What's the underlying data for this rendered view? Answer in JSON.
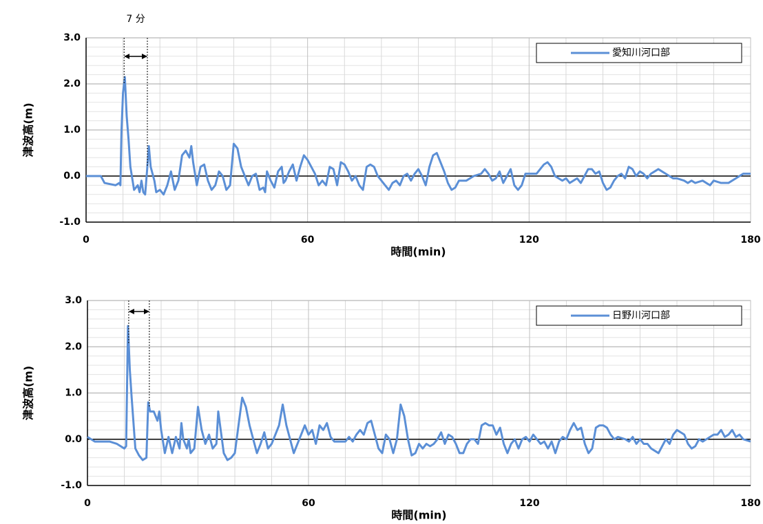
{
  "chart_data": [
    {
      "type": "line",
      "annotation": {
        "text": "7 分",
        "x": [
          10.3,
          16.6
        ]
      },
      "xlabel": "時間(min)",
      "ylabel": "津波高(m)",
      "xlim": [
        0,
        180
      ],
      "ylim": [
        -1,
        3
      ],
      "xticks": [
        0,
        60,
        120,
        180
      ],
      "yticks": [
        {
          "value": -1,
          "label": "-1.0"
        },
        {
          "value": 0,
          "label": "0.0"
        },
        {
          "value": 1,
          "label": "1.0"
        },
        {
          "value": 2,
          "label": "2.0"
        },
        {
          "value": 3,
          "label": "3.0"
        }
      ],
      "xminor": [
        10,
        20,
        30,
        40,
        50,
        70,
        80,
        90,
        100,
        110,
        130,
        140,
        150,
        160,
        170
      ],
      "yminor": [
        -0.8,
        -0.6,
        -0.4,
        -0.2,
        0.2,
        0.4,
        0.6,
        0.8,
        1.2,
        1.4,
        1.6,
        1.8,
        2.2,
        2.4,
        2.6,
        2.8
      ],
      "grid": true,
      "legend": "upper right",
      "x": [
        0,
        4,
        5,
        8,
        9,
        9.3,
        9.6,
        10,
        10.5,
        11,
        11.5,
        12,
        13,
        14,
        14.5,
        15,
        15.5,
        16,
        16.5,
        17,
        17.5,
        18.5,
        19,
        20,
        21,
        22,
        23,
        23.5,
        24,
        25,
        26,
        27,
        28,
        28.5,
        29,
        30,
        31,
        32,
        33,
        34,
        35,
        36,
        37,
        38,
        39,
        40,
        41,
        42,
        43,
        44,
        45,
        46,
        47,
        48,
        48.5,
        49,
        50,
        51,
        52,
        53,
        53.5,
        54,
        55,
        56,
        57,
        58,
        59,
        60,
        61,
        62,
        63,
        64,
        65,
        66,
        67,
        68,
        69,
        70,
        71,
        72,
        73,
        74,
        75,
        76,
        77,
        78,
        79,
        80,
        81,
        82,
        83,
        84,
        85,
        86,
        87,
        88,
        89,
        90,
        91,
        92,
        93,
        94,
        95,
        96,
        97,
        98,
        99,
        100,
        101,
        103,
        105,
        107,
        108,
        109,
        110,
        111,
        112,
        113,
        114,
        115,
        116,
        117,
        118,
        119,
        120,
        121,
        122,
        123,
        124,
        125,
        126,
        127,
        128,
        129,
        130,
        131,
        132,
        133,
        134,
        135,
        136,
        137,
        138,
        139,
        140,
        141,
        142,
        143,
        144,
        145,
        146,
        147,
        148,
        149,
        150,
        151,
        152,
        153,
        154,
        155,
        156,
        157,
        158,
        159,
        160,
        162,
        163,
        164,
        165,
        167,
        168,
        169,
        170,
        172,
        174,
        175,
        176,
        177,
        178,
        180
      ],
      "series": [
        {
          "name": "愛知川河口部",
          "color": "#5b8fd6",
          "values": [
            0,
            0,
            -0.15,
            -0.2,
            -0.15,
            -0.2,
            1.0,
            1.8,
            2.15,
            1.3,
            0.8,
            0.2,
            -0.3,
            -0.2,
            -0.35,
            -0.1,
            -0.35,
            -0.4,
            0.1,
            0.65,
            0.2,
            -0.1,
            -0.35,
            -0.3,
            -0.4,
            -0.2,
            0.1,
            -0.1,
            -0.3,
            -0.1,
            0.45,
            0.55,
            0.4,
            0.65,
            0.3,
            -0.2,
            0.2,
            0.25,
            -0.1,
            -0.3,
            -0.2,
            0.1,
            0,
            -0.3,
            -0.2,
            0.7,
            0.6,
            0.2,
            0,
            -0.2,
            0,
            0.05,
            -0.3,
            -0.25,
            -0.35,
            0.1,
            -0.1,
            -0.25,
            0.1,
            0.2,
            -0.15,
            -0.1,
            0.1,
            0.25,
            -0.1,
            0.2,
            0.45,
            0.35,
            0.2,
            0.05,
            -0.2,
            -0.1,
            -0.2,
            0.2,
            0.15,
            -0.2,
            0.3,
            0.25,
            0.1,
            -0.1,
            0,
            -0.2,
            -0.3,
            0.2,
            0.25,
            0.2,
            0,
            -0.1,
            -0.2,
            -0.3,
            -0.15,
            -0.1,
            -0.2,
            0,
            0.05,
            -0.1,
            0.05,
            0.15,
            0,
            -0.2,
            0.2,
            0.45,
            0.5,
            0.3,
            0.1,
            -0.15,
            -0.3,
            -0.25,
            -0.1,
            -0.1,
            0,
            0.05,
            0.15,
            0.05,
            -0.1,
            -0.05,
            0.1,
            -0.15,
            0,
            0.15,
            -0.2,
            -0.3,
            -0.2,
            0.05,
            0.05,
            0.05,
            0.05,
            0.15,
            0.25,
            0.3,
            0.2,
            0,
            -0.05,
            -0.1,
            -0.05,
            -0.15,
            -0.1,
            -0.05,
            -0.15,
            0,
            0.15,
            0.15,
            0.05,
            0.1,
            -0.15,
            -0.3,
            -0.25,
            -0.1,
            0,
            0.05,
            -0.05,
            0.2,
            0.15,
            0,
            0.1,
            0.05,
            -0.05,
            0.05,
            0.1,
            0.15,
            0.1,
            0.05,
            0,
            -0.05,
            -0.05,
            -0.1,
            -0.15,
            -0.1,
            -0.15,
            -0.1,
            -0.15,
            -0.2,
            -0.1,
            -0.15,
            -0.15,
            -0.1,
            -0.05,
            0,
            0.05,
            0.05
          ]
        }
      ]
    },
    {
      "type": "line",
      "annotation": {
        "x": [
          11.2,
          16.8
        ]
      },
      "xlabel": "時間(min)",
      "ylabel": "津波高(m)",
      "xlim": [
        0,
        180
      ],
      "ylim": [
        -1,
        3
      ],
      "xticks": [
        0,
        60,
        120,
        180
      ],
      "yticks": [
        {
          "value": -1,
          "label": "-1.0"
        },
        {
          "value": 0,
          "label": "0.0"
        },
        {
          "value": 1,
          "label": "1.0"
        },
        {
          "value": 2,
          "label": "2.0"
        },
        {
          "value": 3,
          "label": "3.0"
        }
      ],
      "xminor": [
        10,
        20,
        30,
        40,
        50,
        70,
        80,
        90,
        100,
        110,
        130,
        140,
        150,
        160,
        170
      ],
      "yminor": [
        -0.8,
        -0.6,
        -0.4,
        -0.2,
        0.2,
        0.4,
        0.6,
        0.8,
        1.2,
        1.4,
        1.6,
        1.8,
        2.2,
        2.4,
        2.6,
        2.8
      ],
      "grid": true,
      "legend": "upper right",
      "x": [
        0,
        1,
        2,
        4,
        6,
        8,
        10,
        10.5,
        11,
        11.5,
        12,
        13,
        14,
        15,
        16,
        16.5,
        17,
        18,
        19,
        19.5,
        20,
        21,
        22,
        23,
        24,
        25,
        25.5,
        26,
        27,
        27.5,
        28,
        29,
        30,
        31,
        32,
        33,
        34,
        35,
        35.5,
        36,
        37,
        38,
        39,
        40,
        41,
        42,
        43,
        44,
        45,
        46,
        47,
        48,
        49,
        50,
        51,
        52,
        53,
        54,
        55,
        56,
        57,
        58,
        59,
        60,
        61,
        62,
        63,
        64,
        65,
        66,
        67,
        68,
        69,
        70,
        71,
        72,
        73,
        74,
        75,
        76,
        77,
        78,
        79,
        80,
        81,
        82,
        83,
        84,
        85,
        86,
        87,
        88,
        89,
        90,
        91,
        92,
        93,
        94,
        95,
        96,
        97,
        98,
        99,
        100,
        101,
        102,
        103,
        104,
        105,
        106,
        107,
        108,
        109,
        110,
        111,
        112,
        113,
        114,
        115,
        116,
        117,
        118,
        119,
        120,
        121,
        122,
        123,
        124,
        125,
        126,
        127,
        128,
        129,
        130,
        131,
        132,
        133,
        134,
        135,
        136,
        137,
        138,
        139,
        140,
        141,
        142,
        143,
        144,
        146,
        147,
        148,
        149,
        150,
        151,
        152,
        153,
        154,
        155,
        156,
        157,
        158,
        159,
        160,
        161,
        162,
        163,
        164,
        165,
        166,
        167,
        168,
        169,
        170,
        171,
        172,
        173,
        174,
        175,
        176,
        177,
        178,
        180
      ],
      "series": [
        {
          "name": "日野川河口部",
          "color": "#5b8fd6",
          "values": [
            0.05,
            0,
            -0.05,
            -0.05,
            -0.05,
            -0.1,
            -0.2,
            -0.15,
            2.45,
            1.5,
            0.9,
            -0.2,
            -0.35,
            -0.45,
            -0.4,
            0.8,
            0.6,
            0.6,
            0.4,
            0.6,
            0.2,
            -0.3,
            0.05,
            -0.3,
            0.05,
            -0.2,
            0.35,
            0,
            -0.2,
            0,
            -0.3,
            -0.2,
            0.7,
            0.2,
            -0.1,
            0.1,
            -0.2,
            -0.1,
            0.6,
            0.3,
            -0.3,
            -0.45,
            -0.4,
            -0.3,
            0.3,
            0.9,
            0.7,
            0.3,
            0,
            -0.3,
            -0.1,
            0.15,
            -0.2,
            -0.1,
            0.1,
            0.3,
            0.75,
            0.3,
            0,
            -0.3,
            -0.1,
            0.1,
            0.3,
            0.1,
            0.2,
            -0.1,
            0.3,
            0.2,
            0.35,
            0.05,
            -0.05,
            -0.05,
            -0.05,
            -0.05,
            0.05,
            -0.05,
            0.1,
            0.2,
            0.1,
            0.35,
            0.4,
            0.1,
            -0.2,
            -0.3,
            0.1,
            0,
            -0.3,
            0,
            0.75,
            0.5,
            0,
            -0.35,
            -0.3,
            -0.1,
            -0.2,
            -0.1,
            -0.15,
            -0.1,
            0,
            0.15,
            -0.1,
            0.1,
            0.05,
            -0.1,
            -0.3,
            -0.3,
            -0.1,
            0,
            0,
            -0.1,
            0.3,
            0.35,
            0.3,
            0.3,
            0.1,
            0.25,
            -0.1,
            -0.3,
            -0.1,
            0,
            -0.2,
            0,
            0.05,
            -0.05,
            0.1,
            0,
            -0.1,
            -0.05,
            -0.2,
            -0.05,
            -0.3,
            -0.05,
            0.05,
            0,
            0.2,
            0.35,
            0.2,
            0.25,
            -0.1,
            -0.3,
            -0.2,
            0.25,
            0.3,
            0.3,
            0.25,
            0.1,
            0,
            0.05,
            0,
            -0.05,
            0.05,
            -0.1,
            0,
            -0.1,
            -0.1,
            -0.2,
            -0.25,
            -0.3,
            -0.15,
            0,
            -0.1,
            0.1,
            0.2,
            0.15,
            0.1,
            -0.1,
            -0.2,
            -0.15,
            0,
            -0.05,
            0,
            0.05,
            0.1,
            0.1,
            0.2,
            0.05,
            0.1,
            0.2,
            0.05,
            0.1,
            0,
            -0.05
          ]
        }
      ]
    }
  ]
}
